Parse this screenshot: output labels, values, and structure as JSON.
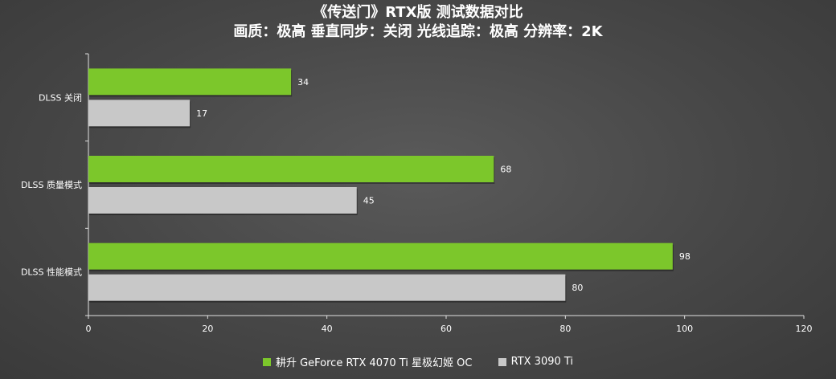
{
  "chart_data": {
    "type": "bar",
    "orientation": "horizontal",
    "title": "《传送门》RTX版 测试数据对比",
    "subtitle": "画质：极高 垂直同步：关闭 光线追踪：极高 分辨率：2K",
    "categories": [
      "DLSS 关闭",
      "DLSS 质量模式",
      "DLSS 性能模式"
    ],
    "series": [
      {
        "name": "耕升 GeForce RTX 4070 Ti 星极幻姬 OC",
        "values": [
          34,
          68,
          98
        ],
        "color": "#7cc72b"
      },
      {
        "name": "RTX 3090 Ti",
        "values": [
          17,
          45,
          80
        ],
        "color": "#c8c8c8"
      }
    ],
    "xlim": [
      0,
      120
    ],
    "xticks": [
      0,
      20,
      40,
      60,
      80,
      100,
      120
    ],
    "legend_position": "bottom",
    "grid": false
  }
}
